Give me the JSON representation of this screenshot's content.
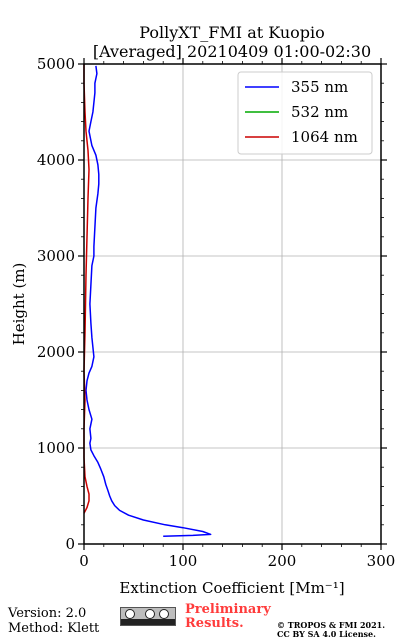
{
  "chart_data": {
    "type": "line",
    "title": "PollyXT_FMI at Kuopio",
    "subtitle": "[Averaged] 20210409 01:00-02:30",
    "xlabel": "Extinction Coefficient [Mm⁻¹]",
    "ylabel": "Height (m)",
    "xlim": [
      0,
      300
    ],
    "ylim": [
      0,
      5000
    ],
    "x_ticks": [
      "0",
      "100",
      "200",
      "300"
    ],
    "y_ticks": [
      "0",
      "1000",
      "2000",
      "3000",
      "4000",
      "5000"
    ],
    "grid": true,
    "legend_position": "top-right",
    "series": [
      {
        "name": "355 nm",
        "color": "#0000ff",
        "points": [
          [
            80,
            80
          ],
          [
            110,
            90
          ],
          [
            128,
            100
          ],
          [
            120,
            130
          ],
          [
            100,
            170
          ],
          [
            82,
            200
          ],
          [
            60,
            250
          ],
          [
            45,
            300
          ],
          [
            36,
            350
          ],
          [
            31,
            400
          ],
          [
            28,
            450
          ],
          [
            26,
            500
          ],
          [
            24,
            560
          ],
          [
            22,
            620
          ],
          [
            20,
            700
          ],
          [
            17,
            780
          ],
          [
            14,
            850
          ],
          [
            10,
            920
          ],
          [
            7,
            980
          ],
          [
            6,
            1050
          ],
          [
            7,
            1100
          ],
          [
            6,
            1200
          ],
          [
            8,
            1300
          ],
          [
            5,
            1400
          ],
          [
            3,
            1500
          ],
          [
            2,
            1600
          ],
          [
            3,
            1700
          ],
          [
            5,
            1780
          ],
          [
            8,
            1850
          ],
          [
            10,
            1950
          ],
          [
            9,
            2050
          ],
          [
            8,
            2150
          ],
          [
            7,
            2300
          ],
          [
            6,
            2500
          ],
          [
            7,
            2700
          ],
          [
            8,
            2900
          ],
          [
            10,
            3000
          ],
          [
            10,
            3100
          ],
          [
            11,
            3300
          ],
          [
            12,
            3500
          ],
          [
            14,
            3650
          ],
          [
            15,
            3750
          ],
          [
            15,
            3850
          ],
          [
            14,
            3950
          ],
          [
            12,
            4050
          ],
          [
            8,
            4150
          ],
          [
            5,
            4300
          ],
          [
            7,
            4400
          ],
          [
            9,
            4500
          ],
          [
            10,
            4600
          ],
          [
            11,
            4700
          ],
          [
            11,
            4800
          ],
          [
            13,
            4900
          ],
          [
            12,
            4980
          ]
        ]
      },
      {
        "name": "532 nm",
        "color": "#00aa00",
        "points": []
      },
      {
        "name": "1064 nm",
        "color": "#cc0000",
        "points": [
          [
            0,
            320
          ],
          [
            3,
            380
          ],
          [
            5,
            450
          ],
          [
            5,
            520
          ],
          [
            3,
            600
          ],
          [
            1,
            700
          ],
          [
            0,
            900
          ],
          [
            0,
            1200
          ],
          [
            1,
            1500
          ],
          [
            0,
            1800
          ],
          [
            1,
            2200
          ],
          [
            2,
            2800
          ],
          [
            3,
            3200
          ],
          [
            4,
            3600
          ],
          [
            5,
            3900
          ],
          [
            4,
            4100
          ],
          [
            2,
            4300
          ],
          [
            1,
            4500
          ],
          [
            0,
            4800
          ],
          [
            0,
            5000
          ]
        ]
      }
    ]
  },
  "footer": {
    "version": "Version: 2.0",
    "method": "Method: Klett",
    "license_badge": "cc-by-sa-badge",
    "preliminary_line1": "Preliminary",
    "preliminary_line2": "Results.",
    "copyright_line1": "© TROPOS & FMI 2021.",
    "copyright_line2": "CC BY SA 4.0 License."
  }
}
